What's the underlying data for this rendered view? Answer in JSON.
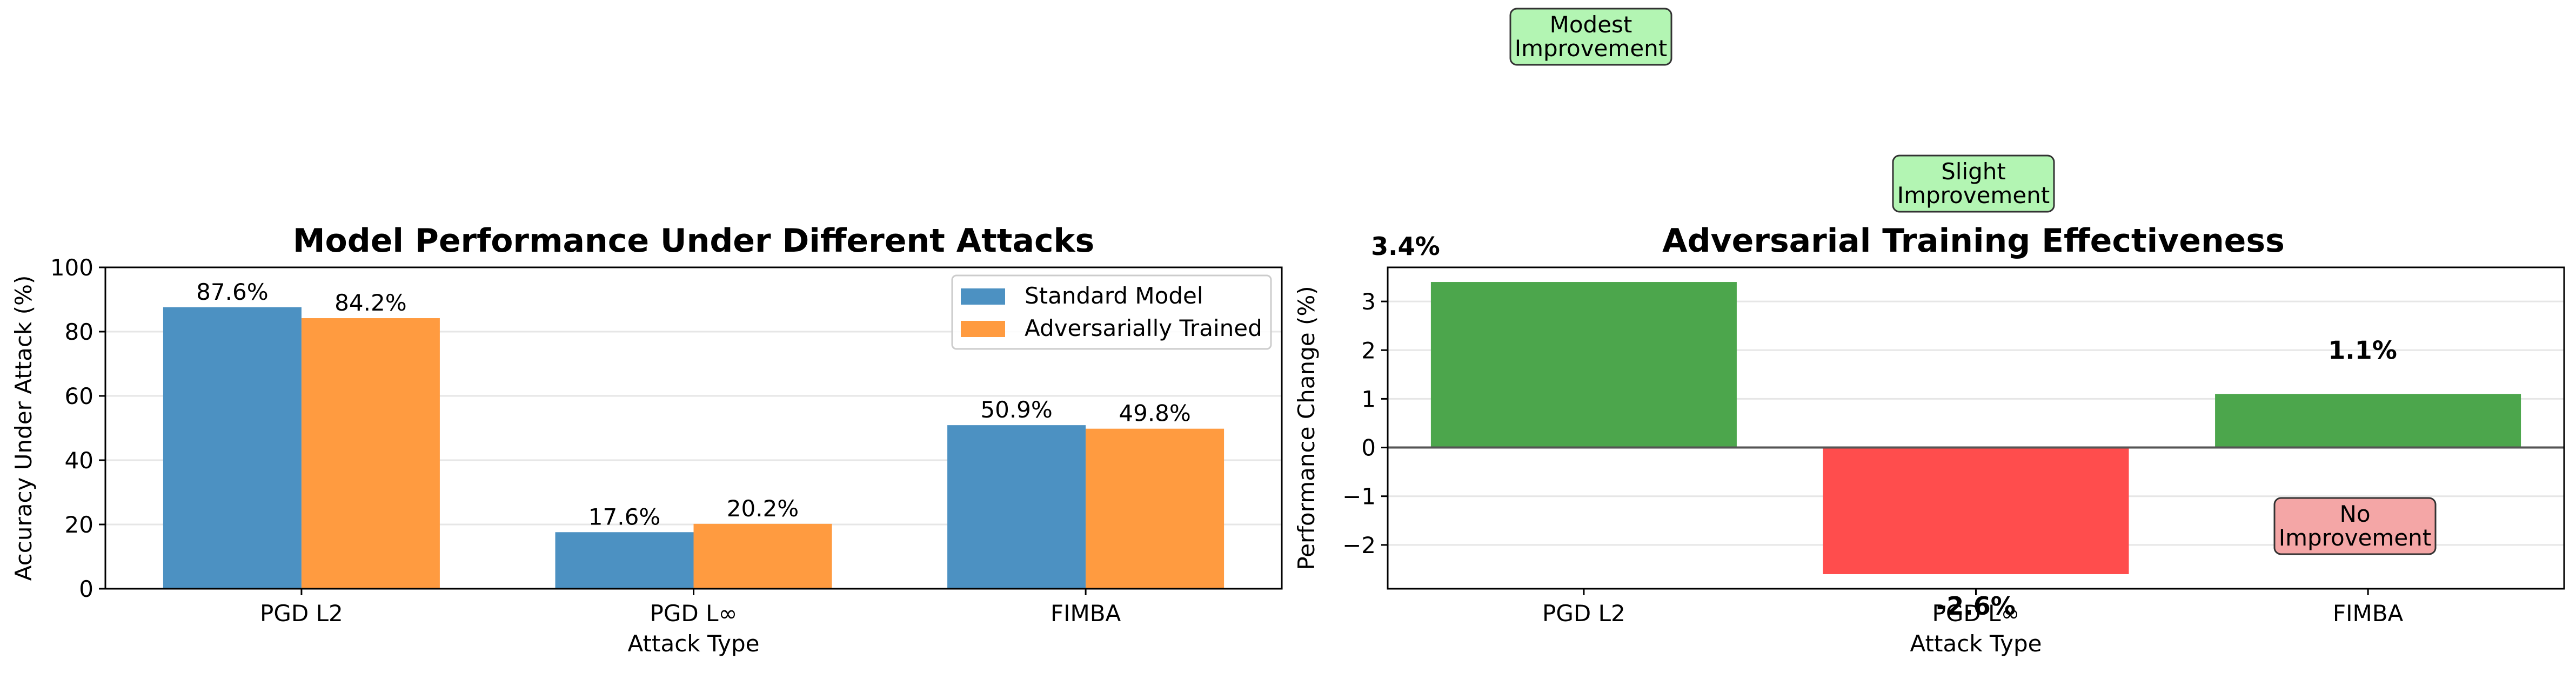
{
  "chart_data": [
    {
      "type": "bar",
      "title": "Model Performance Under Different Attacks",
      "xlabel": "Attack Type",
      "ylabel": "Accuracy Under Attack (%)",
      "ylim": [
        0,
        100
      ],
      "yticks": [
        "0",
        "20",
        "40",
        "60",
        "80",
        "100"
      ],
      "categories": [
        "PGD L2",
        "PGD L∞",
        "FIMBA"
      ],
      "series": [
        {
          "name": "Standard Model",
          "values": [
            87.6,
            17.6,
            50.9
          ],
          "labels": [
            "87.6%",
            "17.6%",
            "50.9%"
          ],
          "color": "#4c91c2"
        },
        {
          "name": "Adversarially Trained",
          "values": [
            84.2,
            20.2,
            49.8
          ],
          "labels": [
            "84.2%",
            "20.2%",
            "49.8%"
          ],
          "color": "#ff9b40"
        }
      ],
      "legend": "top-right",
      "grid": "y"
    },
    {
      "type": "bar",
      "title": "Adversarial Training Effectiveness",
      "xlabel": "Attack Type",
      "ylabel": "Performance Change (%)",
      "ylim": [
        -2.9,
        3.7
      ],
      "yticks": [
        "−2",
        "−1",
        "0",
        "1",
        "2",
        "3"
      ],
      "categories": [
        "PGD L2",
        "PGD L∞",
        "FIMBA"
      ],
      "values": [
        3.4,
        -2.6,
        1.1
      ],
      "labels": [
        "3.4%",
        "-2.6%",
        "1.1%"
      ],
      "colors": [
        "#4ca64c",
        "#ff4d4d",
        "#4ca64c"
      ],
      "annotations": [
        {
          "text": [
            "Modest",
            "Improvement"
          ],
          "color": "#b3f5b3"
        },
        {
          "text": [
            "Slight",
            "Improvement"
          ],
          "color": "#b3f5b3"
        },
        {
          "text": [
            "No",
            "Improvement"
          ],
          "color": "#f4a6a6"
        }
      ],
      "grid": "y"
    }
  ]
}
